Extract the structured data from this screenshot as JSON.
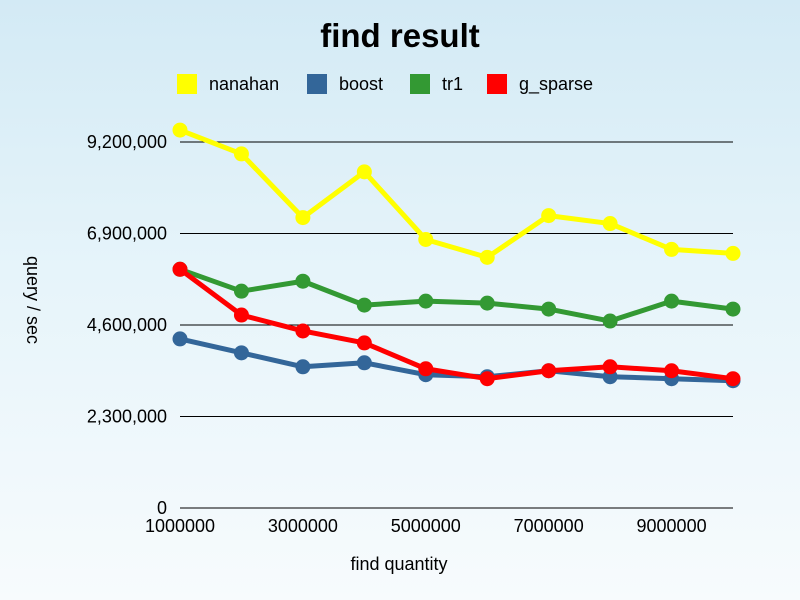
{
  "chart_data": {
    "type": "line",
    "title": "find result",
    "xlabel": "find quantity",
    "ylabel": "query / sec",
    "x": [
      1000000,
      2000000,
      3000000,
      4000000,
      5000000,
      6000000,
      7000000,
      8000000,
      9000000,
      10000000
    ],
    "xlim": [
      1000000,
      10000000
    ],
    "xticks": [
      1000000,
      3000000,
      5000000,
      7000000,
      9000000
    ],
    "xtick_labels": [
      "1000000",
      "3000000",
      "5000000",
      "7000000",
      "9000000"
    ],
    "ylim": [
      0,
      9200000
    ],
    "yticks": [
      0,
      2300000,
      4600000,
      6900000,
      9200000
    ],
    "ytick_labels": [
      "0",
      "2,300,000",
      "4,600,000",
      "6,900,000",
      "9,200,000"
    ],
    "grid": "horizontal",
    "legend_position": "top",
    "series": [
      {
        "name": "nanahan",
        "color": "#ffff00",
        "values": [
          9500000,
          8900000,
          7300000,
          8450000,
          6750000,
          6300000,
          7350000,
          7150000,
          6500000,
          6400000
        ]
      },
      {
        "name": "boost",
        "color": "#336699",
        "values": [
          4250000,
          3900000,
          3550000,
          3650000,
          3350000,
          3300000,
          3450000,
          3300000,
          3250000,
          3200000
        ]
      },
      {
        "name": "tr1",
        "color": "#339933",
        "values": [
          6000000,
          5450000,
          5700000,
          5100000,
          5200000,
          5150000,
          5000000,
          4700000,
          5200000,
          5000000
        ]
      },
      {
        "name": "g_sparse",
        "color": "#ff0000",
        "values": [
          6000000,
          4850000,
          4450000,
          4150000,
          3500000,
          3250000,
          3450000,
          3550000,
          3450000,
          3250000
        ]
      }
    ]
  }
}
